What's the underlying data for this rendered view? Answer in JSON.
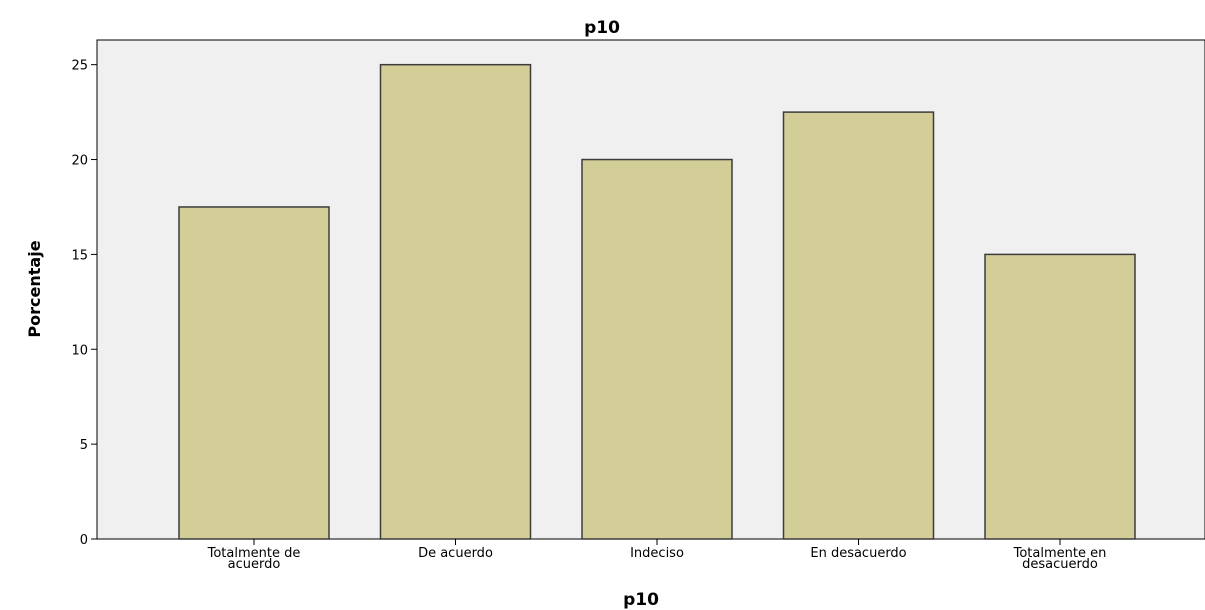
{
  "chart_data": {
    "type": "bar",
    "title": "p10",
    "xlabel": "p10",
    "ylabel": "Porcentaje",
    "categories": [
      [
        "Totalmente de",
        "acuerdo"
      ],
      [
        "De acuerdo"
      ],
      [
        "Indeciso"
      ],
      [
        "En desacuerdo"
      ],
      [
        "Totalmente en",
        "desacuerdo"
      ]
    ],
    "values": [
      17.5,
      25.0,
      20.0,
      22.5,
      15.0
    ],
    "yticks": [
      0,
      5,
      10,
      15,
      20,
      25
    ],
    "ylim": [
      0,
      26.3
    ],
    "grid": false,
    "colors": {
      "plot_background": "#f0f0f0",
      "bar_fill": "#d3ce97",
      "bar_stroke": "#3c3c3c",
      "axis": "#000000"
    }
  }
}
